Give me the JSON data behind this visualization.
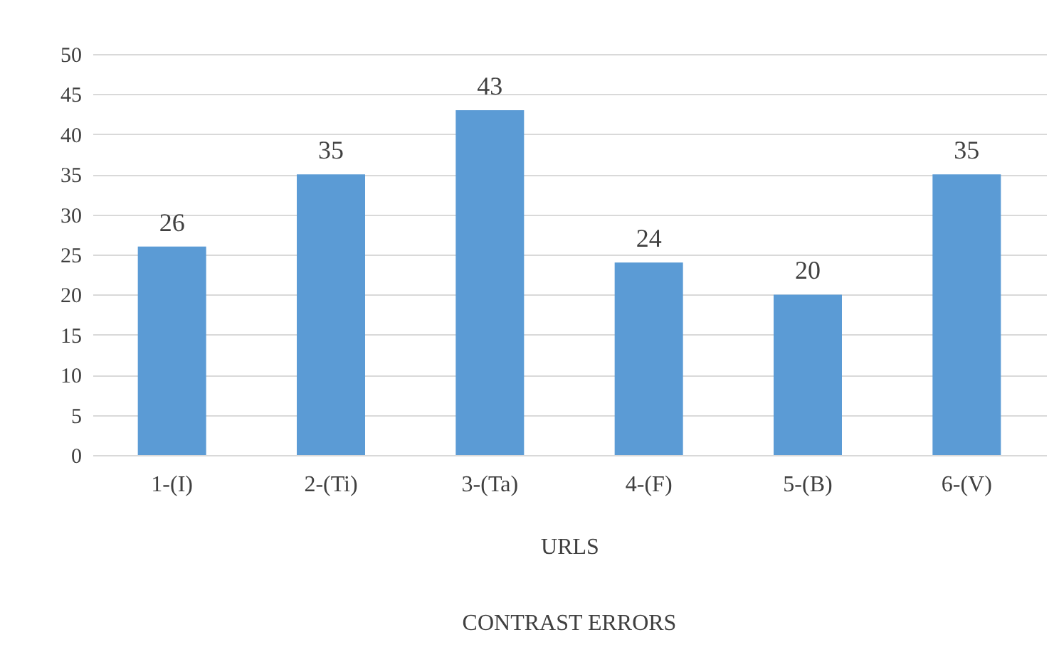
{
  "chart_data": {
    "type": "bar",
    "categories": [
      "1-(I)",
      "2-(Ti)",
      "3-(Ta)",
      "4-(F)",
      "5-(B)",
      "6-(V)"
    ],
    "values": [
      26,
      35,
      43,
      24,
      20,
      35
    ],
    "color": "#5b9bd5",
    "ylim": [
      0,
      50
    ],
    "yticks": [
      0,
      5,
      10,
      15,
      20,
      25,
      30,
      35,
      40,
      45,
      50
    ],
    "grid": "y",
    "data_labels": true,
    "xlabel": "URLS",
    "annotations": [
      "CONTRAST ERRORS"
    ]
  }
}
